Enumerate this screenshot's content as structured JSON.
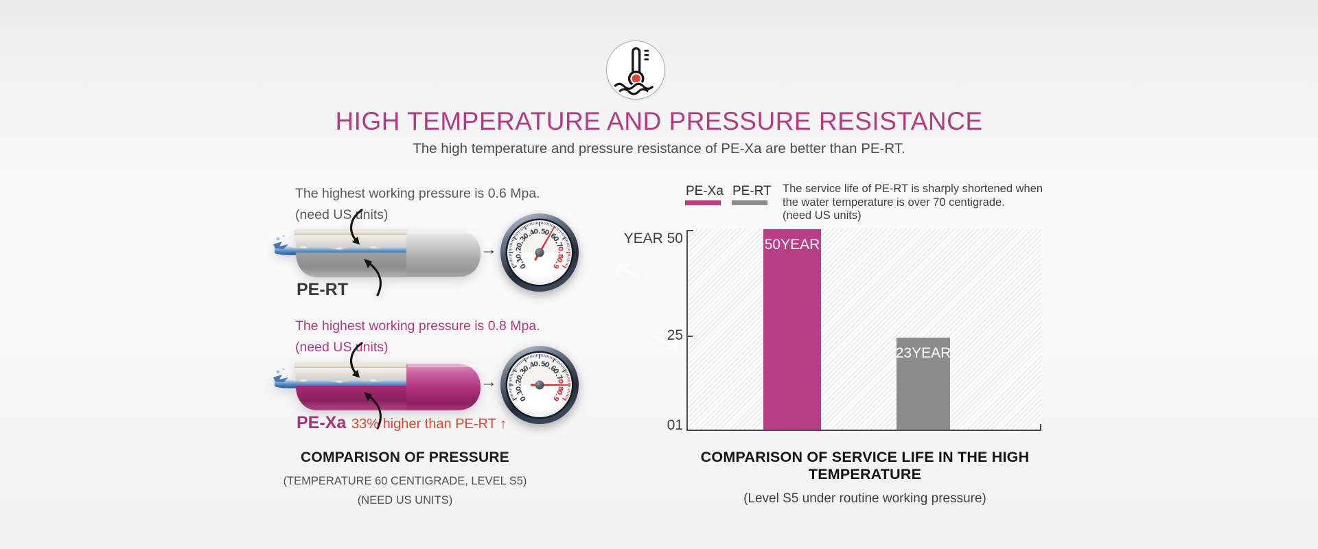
{
  "header": {
    "icon": "thermometer-water-icon",
    "title": "HIGH TEMPERATURE AND PRESSURE RESISTANCE",
    "subtitle": "The high temperature and pressure resistance of PE-Xa are better than PE-RT."
  },
  "glyphs": {
    "right_arrow": "→"
  },
  "gauge": {
    "scale": [
      "0.1",
      "0.2",
      "0.3",
      "0.4",
      "0.5",
      "0.6",
      "0.7",
      "0.8",
      "0.9"
    ]
  },
  "pressure_section": {
    "pert": {
      "desc_line1": "The highest working pressure is 0.6 Mpa.",
      "desc_line2": "(need US units)",
      "label": "PE-RT",
      "gauge_value": "0.6"
    },
    "pexa": {
      "desc_line1": "The highest working pressure is 0.8 Mpa.",
      "desc_line2": "(need US units)",
      "label": "PE-Xa",
      "note": "33% higher than PE-RT ↑",
      "gauge_value": "0.8"
    },
    "caption_title": "COMPARISON OF PRESSURE",
    "caption_sub1": "(TEMPERATURE 60 CENTIGRADE, LEVEL S5)",
    "caption_sub2": "(NEED US UNITS)"
  },
  "service_section": {
    "legend": [
      {
        "label": "PE-Xa",
        "color": "#b93e86"
      },
      {
        "label": "PE-RT",
        "color": "#8c8c8c"
      }
    ],
    "note_lines": [
      "The service life of PE-RT is sharply shortened when",
      "the water temperature is over 70 centigrade.",
      "(need US units)"
    ],
    "caption_title": "COMPARISON OF SERVICE LIFE IN THE HIGH TEMPERATURE",
    "caption_sub": "(Level S5 under routine working pressure)"
  },
  "chart_data": {
    "type": "bar",
    "categories": [
      "PE-Xa",
      "PE-RT"
    ],
    "values": [
      50,
      23
    ],
    "bar_labels": [
      "50YEAR",
      "23YEAR"
    ],
    "bar_colors": [
      "#b93e86",
      "#8c8c8c"
    ],
    "y_ticks": [
      "YEAR 50",
      "25",
      "01"
    ],
    "ylabel": "YEAR",
    "ylim": [
      0,
      50
    ],
    "grid": "diagonal-hatch",
    "legend_position": "top-left",
    "title": "COMPARISON OF SERVICE LIFE IN THE HIGH TEMPERATURE"
  },
  "colors": {
    "accent_magenta": "#b43b80",
    "accent_red": "#e2422d",
    "bar_gray": "#8c8c8c",
    "text_dark": "#1c1c1c",
    "text_gray": "#595959"
  }
}
